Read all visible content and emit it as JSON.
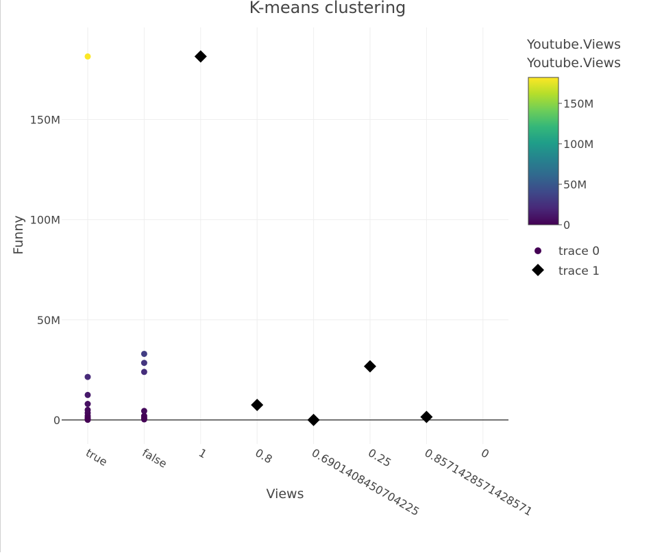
{
  "chart_data": {
    "type": "scatter",
    "title": "K-means clustering",
    "xlabel": "Views",
    "ylabel": "Funny",
    "x_categories": [
      "true",
      "false",
      "1",
      "0.8",
      "0.6901408450704225",
      "0.25",
      "0.8571428571428571",
      "0"
    ],
    "yticks": [
      {
        "value": 0,
        "label": "0"
      },
      {
        "value": 50000000,
        "label": "50M"
      },
      {
        "value": 100000000,
        "label": "100M"
      },
      {
        "value": 150000000,
        "label": "150M"
      }
    ],
    "ylim": [
      -12000000,
      196000000
    ],
    "grid": true,
    "colorbar": {
      "title_lines": [
        "Youtube.Views",
        "Youtube.Views"
      ],
      "colorscale": "viridis",
      "range": [
        0,
        182000000
      ],
      "ticks": [
        {
          "value": 0,
          "label": "0"
        },
        {
          "value": 50000000,
          "label": "50M"
        },
        {
          "value": 100000000,
          "label": "100M"
        },
        {
          "value": 150000000,
          "label": "150M"
        }
      ]
    },
    "series": [
      {
        "name": "trace 0",
        "marker": "circle",
        "points": [
          {
            "x": "true",
            "y": 181500000,
            "c": 181500000
          },
          {
            "x": "true",
            "y": 21500000,
            "c": 21500000
          },
          {
            "x": "true",
            "y": 12500000,
            "c": 12500000
          },
          {
            "x": "true",
            "y": 8000000,
            "c": 8000000
          },
          {
            "x": "true",
            "y": 5000000,
            "c": 5000000
          },
          {
            "x": "true",
            "y": 3500000,
            "c": 3500000
          },
          {
            "x": "true",
            "y": 2000000,
            "c": 2000000
          },
          {
            "x": "true",
            "y": 1000000,
            "c": 1000000
          },
          {
            "x": "true",
            "y": 500000,
            "c": 500000
          },
          {
            "x": "true",
            "y": 100000,
            "c": 100000
          },
          {
            "x": "false",
            "y": 33000000,
            "c": 33000000
          },
          {
            "x": "false",
            "y": 28500000,
            "c": 28500000
          },
          {
            "x": "false",
            "y": 24000000,
            "c": 24000000
          },
          {
            "x": "false",
            "y": 4500000,
            "c": 4500000
          },
          {
            "x": "false",
            "y": 2000000,
            "c": 2000000
          },
          {
            "x": "false",
            "y": 1000000,
            "c": 1000000
          },
          {
            "x": "false",
            "y": 300000,
            "c": 300000
          }
        ]
      },
      {
        "name": "trace 1",
        "marker": "diamond",
        "color": "#000000",
        "points": [
          {
            "x": "1",
            "y": 181500000
          },
          {
            "x": "0.8",
            "y": 7500000
          },
          {
            "x": "0.6901408450704225",
            "y": 0
          },
          {
            "x": "0.25",
            "y": 26800000
          },
          {
            "x": "0.8571428571428571",
            "y": 1500000
          }
        ]
      }
    ],
    "legend_position": "right"
  }
}
